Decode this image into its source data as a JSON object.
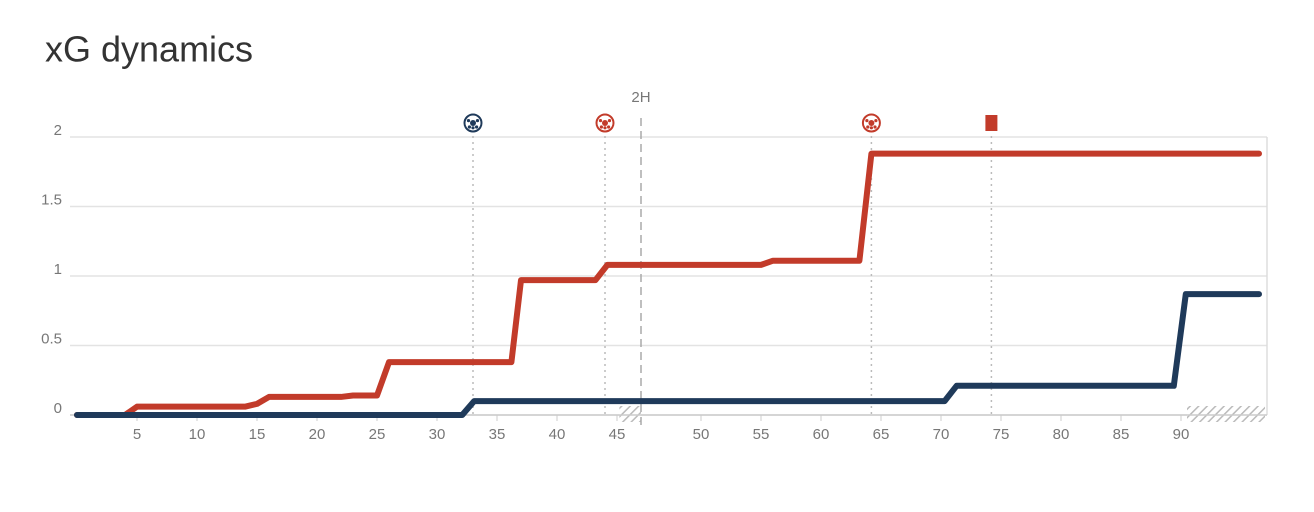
{
  "chart_data": {
    "type": "line",
    "title": "xG dynamics",
    "xlim": [
      0,
      98.75
    ],
    "xticks": [
      5,
      10,
      15,
      20,
      25,
      30,
      35,
      40,
      45,
      {
        "value": 52,
        "label": "50"
      },
      {
        "value": 57,
        "label": "55"
      },
      {
        "value": 62,
        "label": "60"
      },
      {
        "value": 67,
        "label": "65"
      },
      {
        "value": 72,
        "label": "70"
      },
      {
        "value": 77,
        "label": "75"
      },
      {
        "value": 82,
        "label": "80"
      },
      {
        "value": 87,
        "label": "85"
      },
      {
        "value": 92,
        "label": "90"
      }
    ],
    "ylim": [
      0,
      2
    ],
    "yticks": [
      0,
      0.5,
      1,
      1.5,
      2
    ],
    "grid": true,
    "half_time": {
      "x": 47,
      "label": "2H"
    },
    "stoppage": [
      [
        45.2,
        47
      ],
      [
        92.5,
        99
      ]
    ],
    "series": [
      {
        "color": "#c23b2a",
        "x": [
          0,
          4,
          5,
          14,
          15,
          16,
          22,
          23,
          25,
          26,
          36.2,
          37,
          43.2,
          44.2,
          57,
          58,
          65.2,
          66.2,
          98.5
        ],
        "values": [
          0,
          0,
          0.06,
          0.06,
          0.08,
          0.13,
          0.13,
          0.14,
          0.14,
          0.38,
          0.38,
          0.97,
          0.97,
          1.08,
          1.08,
          1.11,
          1.11,
          1.88,
          1.88
        ]
      },
      {
        "color": "#1f3a5a",
        "x": [
          0,
          32.1,
          33.1,
          72.3,
          73.3,
          91.4,
          92.4,
          98.5
        ],
        "values": [
          0,
          0,
          0.1,
          0.1,
          0.21,
          0.21,
          0.87,
          0.87
        ]
      }
    ],
    "events": [
      {
        "x": 33,
        "kind": "goal",
        "color": "#1f3a5a"
      },
      {
        "x": 44,
        "kind": "goal",
        "color": "#c23b2a"
      },
      {
        "x": 66.2,
        "kind": "goal",
        "color": "#c23b2a"
      },
      {
        "x": 76.2,
        "kind": "card",
        "color": "#c23b2a"
      }
    ]
  }
}
